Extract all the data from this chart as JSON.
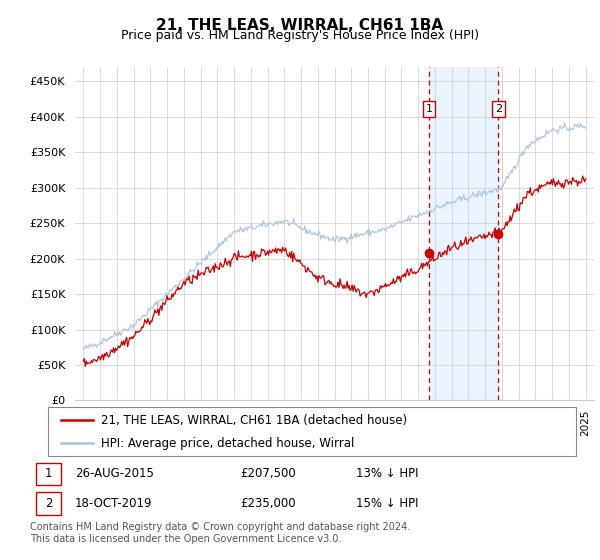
{
  "title": "21, THE LEAS, WIRRAL, CH61 1BA",
  "subtitle": "Price paid vs. HM Land Registry's House Price Index (HPI)",
  "ylabel_ticks": [
    "£0",
    "£50K",
    "£100K",
    "£150K",
    "£200K",
    "£250K",
    "£300K",
    "£350K",
    "£400K",
    "£450K"
  ],
  "ytick_values": [
    0,
    50000,
    100000,
    150000,
    200000,
    250000,
    300000,
    350000,
    400000,
    450000
  ],
  "ylim": [
    0,
    470000
  ],
  "xlim_start": 1994.5,
  "xlim_end": 2025.5,
  "hpi_color": "#aac4dd",
  "price_color": "#cc0000",
  "sale1_x": 2015.65,
  "sale1_y": 207500,
  "sale2_x": 2019.79,
  "sale2_y": 235000,
  "sale1_label": "1",
  "sale2_label": "2",
  "vline_color": "#cc0000",
  "shade_color": "#ddeeff",
  "legend_line1": "21, THE LEAS, WIRRAL, CH61 1BA (detached house)",
  "legend_line2": "HPI: Average price, detached house, Wirral",
  "table_row1": [
    "1",
    "26-AUG-2015",
    "£207,500",
    "13% ↓ HPI"
  ],
  "table_row2": [
    "2",
    "18-OCT-2019",
    "£235,000",
    "15% ↓ HPI"
  ],
  "footnote": "Contains HM Land Registry data © Crown copyright and database right 2024.\nThis data is licensed under the Open Government Licence v3.0.",
  "title_fontsize": 11,
  "subtitle_fontsize": 9,
  "tick_fontsize": 8,
  "legend_fontsize": 8.5,
  "table_fontsize": 8.5,
  "footnote_fontsize": 7
}
